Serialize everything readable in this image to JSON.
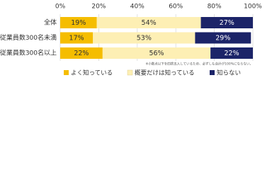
{
  "chart_data": {
    "type": "stacked-bar-horizontal",
    "categories": [
      "全体",
      "従業員数300名未満",
      "従業員数300名以上"
    ],
    "series": [
      {
        "name": "よく知っている",
        "color": "#f5bd00",
        "values": [
          19,
          17,
          22
        ],
        "value_labels": [
          "19%",
          "17%",
          "22%"
        ]
      },
      {
        "name": "概要だけは知っている",
        "color": "#fdefb4",
        "values": [
          54,
          53,
          56
        ],
        "value_labels": [
          "54%",
          "53%",
          "56%"
        ]
      },
      {
        "name": "知らない",
        "color": "#1c2468",
        "values": [
          27,
          29,
          22
        ],
        "value_labels": [
          "27%",
          "29%",
          "22%"
        ]
      }
    ],
    "xlim": [
      0,
      100
    ],
    "xticks": [
      {
        "value": 0,
        "label": "0%"
      },
      {
        "value": 20,
        "label": "20%"
      },
      {
        "value": 40,
        "label": "40%"
      },
      {
        "value": 60,
        "label": "60%"
      },
      {
        "value": 80,
        "label": "80%"
      },
      {
        "value": 100,
        "label": "100%"
      }
    ],
    "grid": true,
    "note": "※小数点以下を四捨五入しているため、必ずしも合計が100%にならない。"
  }
}
